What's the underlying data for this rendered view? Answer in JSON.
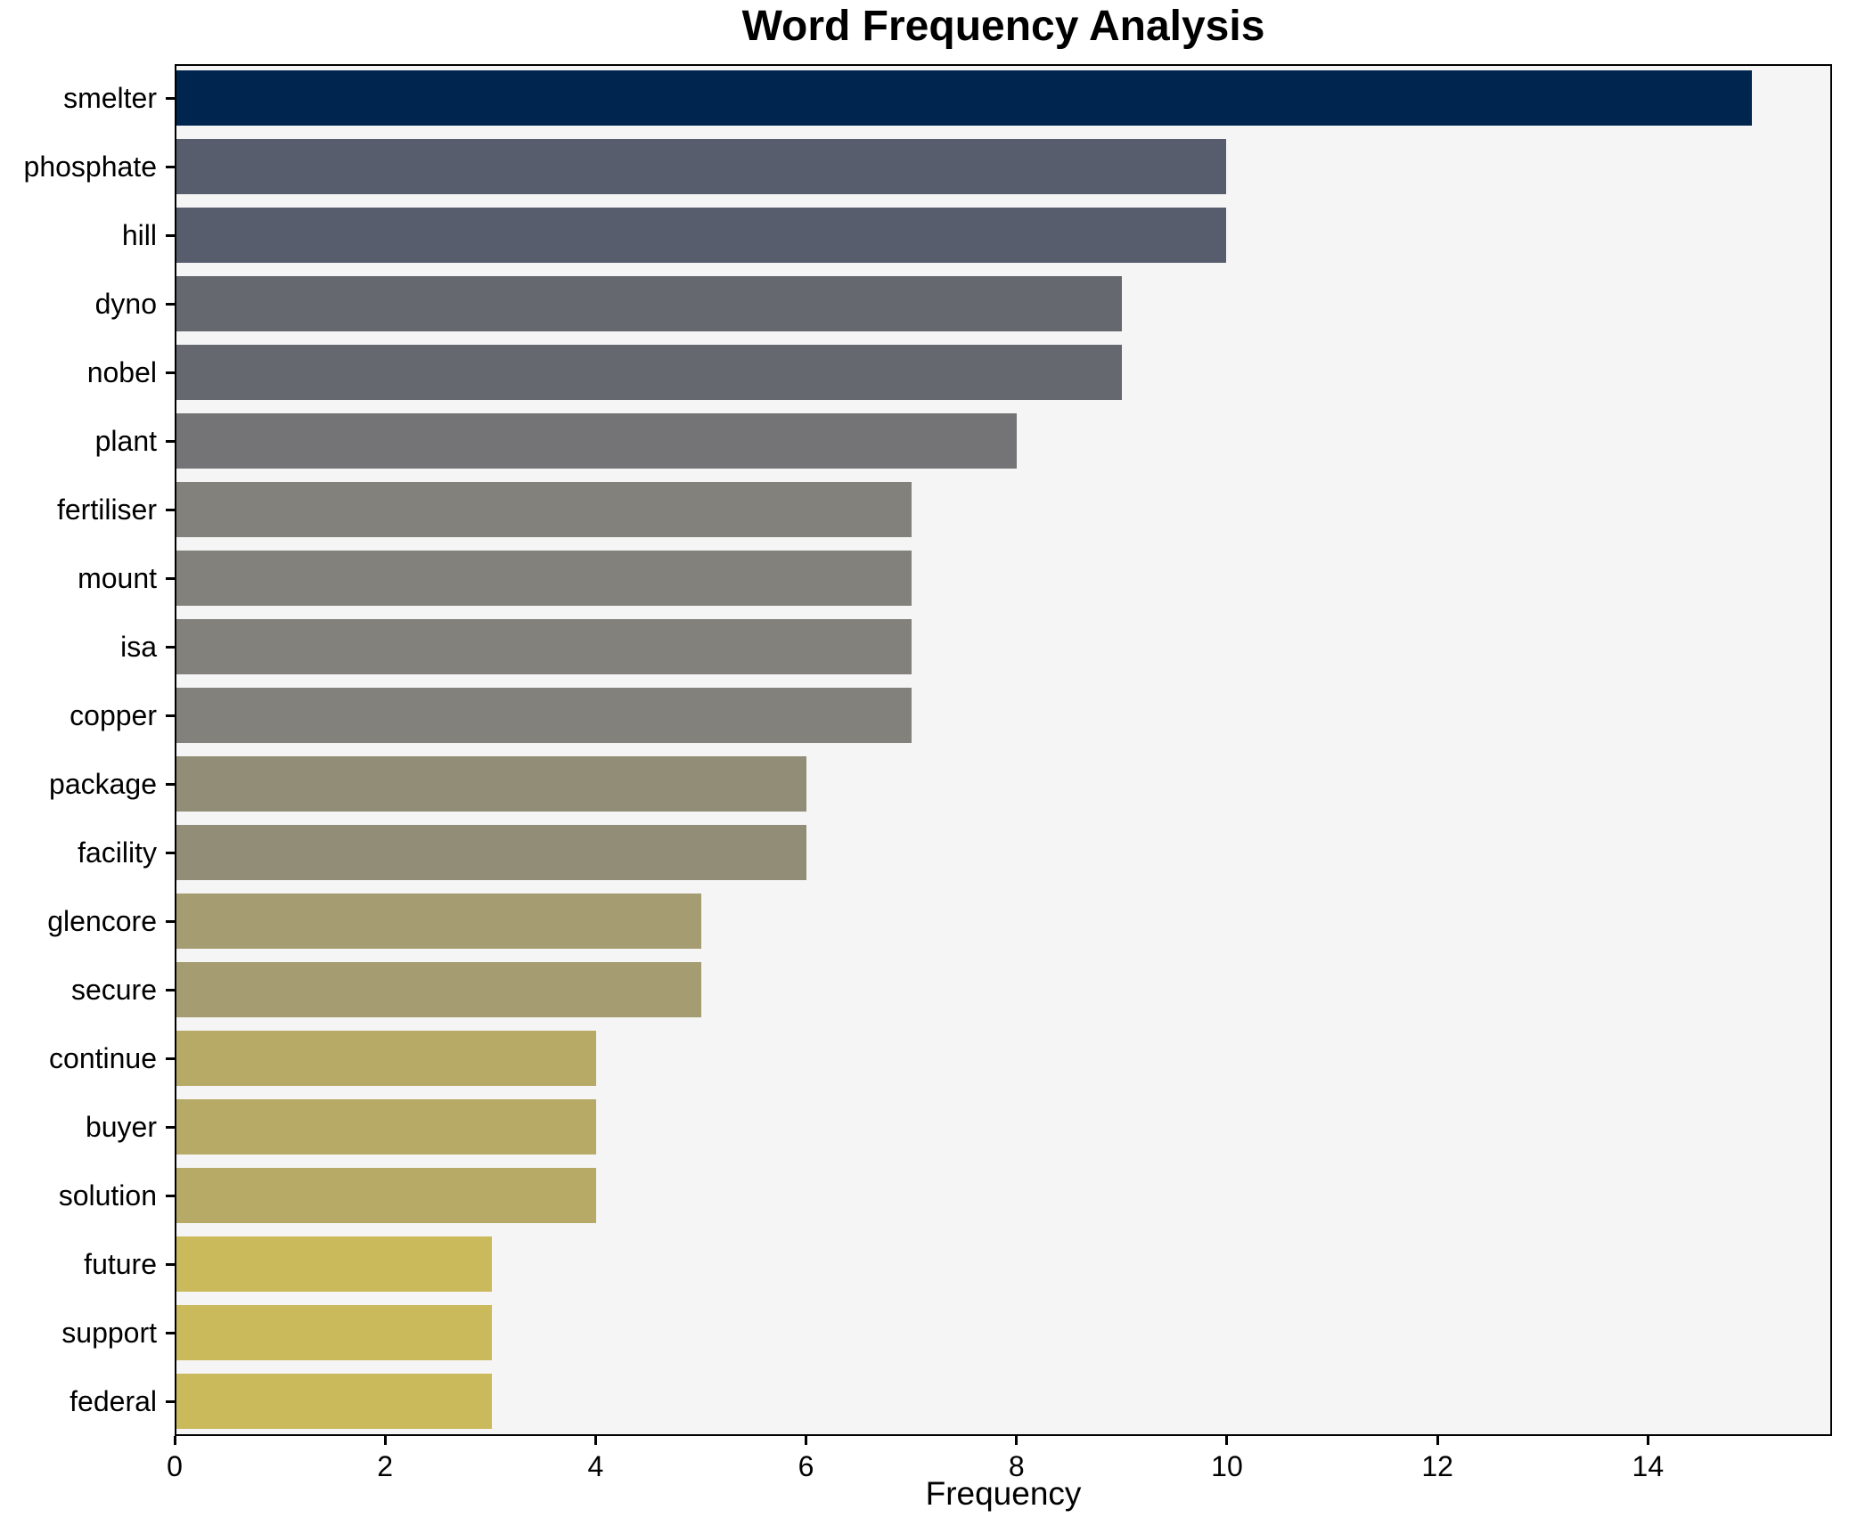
{
  "title": "Word Frequency Analysis",
  "chart_data": {
    "type": "bar",
    "orientation": "horizontal",
    "title": "Word Frequency Analysis",
    "xlabel": "Frequency",
    "ylabel": "",
    "categories": [
      "smelter",
      "phosphate",
      "hill",
      "dyno",
      "nobel",
      "plant",
      "fertiliser",
      "mount",
      "isa",
      "copper",
      "package",
      "facility",
      "glencore",
      "secure",
      "continue",
      "buyer",
      "solution",
      "future",
      "support",
      "federal"
    ],
    "values": [
      15,
      10,
      10,
      9,
      9,
      8,
      7,
      7,
      7,
      7,
      6,
      6,
      5,
      5,
      4,
      4,
      4,
      3,
      3,
      3
    ],
    "bar_colors": [
      "#00254f",
      "#575d6d",
      "#575d6d",
      "#65686f",
      "#65686f",
      "#747476",
      "#83817b",
      "#83817b",
      "#83817b",
      "#83817b",
      "#928d76",
      "#928d76",
      "#a59d71",
      "#a59d71",
      "#b7aa66",
      "#b7aa66",
      "#b7aa66",
      "#cbba5c",
      "#cbba5c",
      "#cbba5c"
    ],
    "colormap": "cividis-by-value",
    "xticks": [
      0,
      2,
      4,
      6,
      8,
      10,
      12,
      14
    ],
    "xlim": [
      0,
      15.75
    ],
    "grid": false,
    "legend": null,
    "plot_bg": "#f5f5f6",
    "figure_bg": "#ffffff",
    "spine_color": "#000000",
    "text_color": "#000000"
  }
}
